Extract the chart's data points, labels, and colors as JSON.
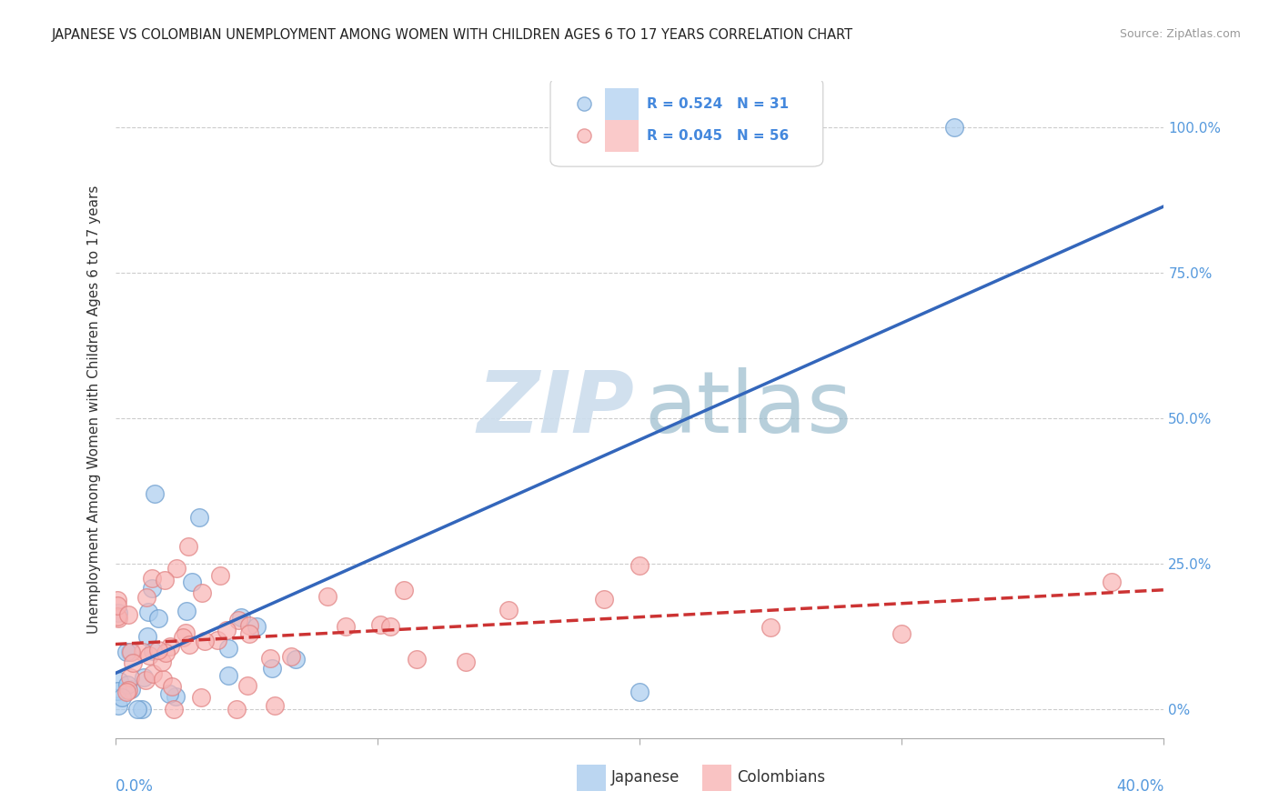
{
  "title": "JAPANESE VS COLOMBIAN UNEMPLOYMENT AMONG WOMEN WITH CHILDREN AGES 6 TO 17 YEARS CORRELATION CHART",
  "source": "Source: ZipAtlas.com",
  "ylabel": "Unemployment Among Women with Children Ages 6 to 17 years",
  "ytick_labels": [
    "0%",
    "25.0%",
    "50.0%",
    "75.0%",
    "100.0%"
  ],
  "ytick_values": [
    0.0,
    0.25,
    0.5,
    0.75,
    1.0
  ],
  "xmin": 0.0,
  "xmax": 0.4,
  "ymin": -0.05,
  "ymax": 1.08,
  "legend_label_japanese": "Japanese",
  "legend_label_colombian": "Colombians",
  "japanese_color": "#aaccee",
  "colombian_color": "#f8b4b4",
  "japanese_edge": "#6699cc",
  "colombian_edge": "#e08080",
  "regression_japanese_color": "#3366bb",
  "regression_colombian_color": "#cc3333",
  "watermark_zip_color": "#ccdded",
  "watermark_atlas_color": "#99bbcc",
  "background_color": "#ffffff",
  "grid_color": "#cccccc",
  "tick_color": "#aaaaaa",
  "right_axis_color": "#5599dd",
  "title_color": "#222222",
  "source_color": "#999999",
  "legend_text_color": "#4488dd",
  "legend_R_japanese": "R = 0.524",
  "legend_N_japanese": "N = 31",
  "legend_R_colombian": "R = 0.045",
  "legend_N_colombian": "N = 56"
}
